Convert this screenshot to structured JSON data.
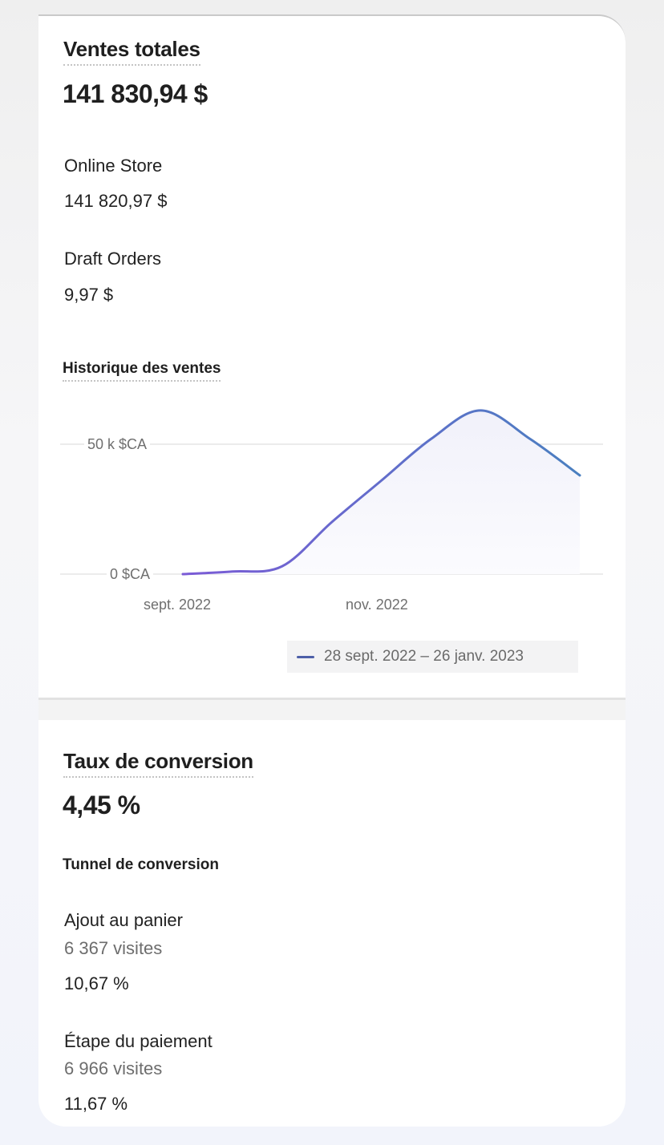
{
  "sales": {
    "title": "Ventes totales",
    "total": "141 830,94 $",
    "channels": [
      {
        "label": "Online Store",
        "value": "141 820,97 $"
      },
      {
        "label": "Draft Orders",
        "value": "9,97 $"
      }
    ],
    "history_title": "Historique des ventes"
  },
  "chart_data": {
    "type": "area",
    "x": [
      "2022-09-28",
      "2022-10-13",
      "2022-10-28",
      "2022-11-12",
      "2022-11-27",
      "2022-12-12",
      "2022-12-27",
      "2023-01-11",
      "2023-01-26"
    ],
    "series": [
      {
        "name": "28 sept. 2022 – 26 janv. 2023",
        "values": [
          0,
          1000,
          3000,
          20000,
          36000,
          52000,
          63000,
          52000,
          38000
        ]
      }
    ],
    "ylim": [
      0,
      65000
    ],
    "y_ticks": [
      {
        "value": 0,
        "label": "0 $CA"
      },
      {
        "value": 50000,
        "label": "50 k $CA"
      }
    ],
    "x_ticks": [
      "sept. 2022",
      "nov. 2022"
    ],
    "grid": true,
    "legend": "bottom-right",
    "colors": {
      "line_start": "#7b5bd6",
      "line_end": "#4a7fc0",
      "fill": "#f4f4fb"
    }
  },
  "conversion": {
    "title": "Taux de conversion",
    "rate": "4,45 %",
    "funnel_title": "Tunnel de conversion",
    "steps": [
      {
        "label": "Ajout au panier",
        "visits": "6 367 visites",
        "rate": "10,67 %"
      },
      {
        "label": "Étape du paiement",
        "visits": "6 966 visites",
        "rate": "11,67 %"
      }
    ]
  }
}
